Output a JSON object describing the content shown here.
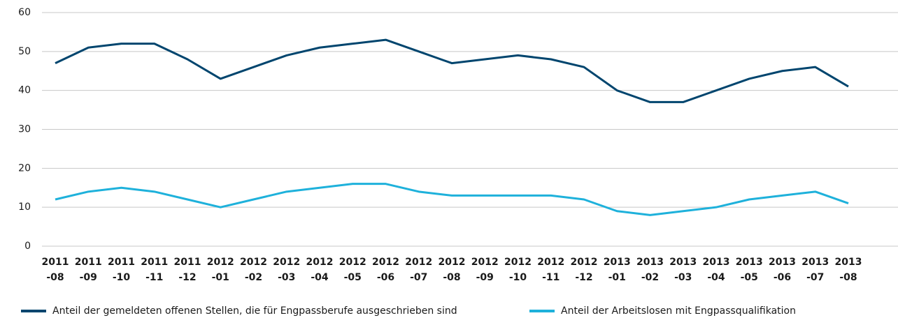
{
  "chart_data": {
    "type": "line",
    "categories": [
      [
        "2011",
        "-08"
      ],
      [
        "2011",
        "-09"
      ],
      [
        "2011",
        "-10"
      ],
      [
        "2011",
        "-11"
      ],
      [
        "2011",
        "-12"
      ],
      [
        "2012",
        "-01"
      ],
      [
        "2012",
        "-02"
      ],
      [
        "2012",
        "-03"
      ],
      [
        "2012",
        "-04"
      ],
      [
        "2012",
        "-05"
      ],
      [
        "2012",
        "-06"
      ],
      [
        "2012",
        "-07"
      ],
      [
        "2012",
        "-08"
      ],
      [
        "2012",
        "-09"
      ],
      [
        "2012",
        "-10"
      ],
      [
        "2012",
        "-11"
      ],
      [
        "2012",
        "-12"
      ],
      [
        "2013",
        "-01"
      ],
      [
        "2013",
        "-02"
      ],
      [
        "2013",
        "-03"
      ],
      [
        "2013",
        "-04"
      ],
      [
        "2013",
        "-05"
      ],
      [
        "2013",
        "-06"
      ],
      [
        "2013",
        "-07"
      ],
      [
        "2013",
        "-08"
      ]
    ],
    "series": [
      {
        "name": "Anteil der gemeldeten offenen Stellen, die für Engpassberufe ausgeschrieben sind",
        "color": "#00456e",
        "values": [
          47,
          51,
          52,
          52,
          48,
          43,
          46,
          49,
          51,
          52,
          53,
          50,
          47,
          48,
          49,
          48,
          46,
          40,
          37,
          37,
          40,
          43,
          45,
          46,
          41
        ]
      },
      {
        "name": "Anteil der Arbeitslosen mit Engpassqualifikation",
        "color": "#1eb1db",
        "values": [
          12,
          14,
          15,
          14,
          12,
          10,
          12,
          14,
          15,
          16,
          16,
          14,
          13,
          13,
          13,
          13,
          12,
          9,
          8,
          9,
          10,
          12,
          13,
          14,
          11
        ]
      }
    ],
    "ylim": [
      0,
      60
    ],
    "yticks": [
      0,
      10,
      20,
      30,
      40,
      50,
      60
    ],
    "grid": true,
    "legend": "bottom"
  }
}
